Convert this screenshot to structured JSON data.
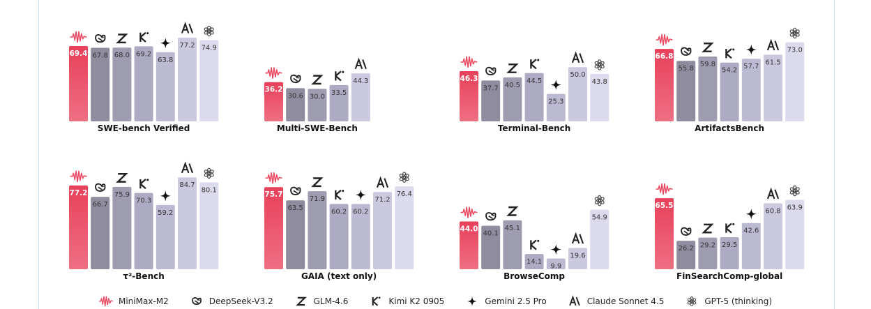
{
  "models": [
    {
      "name": "MiniMax-M2",
      "icon": "minimax-icon",
      "color": "#e8475f"
    },
    {
      "name": "DeepSeek-V3.2",
      "icon": "deepseek-icon",
      "color": "#8e8c9e"
    },
    {
      "name": "GLM-4.6",
      "icon": "glm-icon",
      "color": "#9e9cb0"
    },
    {
      "name": "Kimi K2 0905",
      "icon": "kimi-icon",
      "color": "#adabc3"
    },
    {
      "name": "Gemini 2.5 Pro",
      "icon": "gemini-icon",
      "color": "#bcbad2"
    },
    {
      "name": "Claude Sonnet 4.5",
      "icon": "claude-icon",
      "color": "#cbc9e0"
    },
    {
      "name": "GPT-5 (thinking)",
      "icon": "openai-icon",
      "color": "#dcdbed"
    }
  ],
  "chart_data": [
    {
      "type": "bar",
      "title": "SWE-bench Verified",
      "series": [
        {
          "model": "MiniMax-M2",
          "value": 69.4
        },
        {
          "model": "DeepSeek-V3.2",
          "value": 67.8
        },
        {
          "model": "GLM-4.6",
          "value": 68.0
        },
        {
          "model": "Kimi K2 0905",
          "value": 69.2
        },
        {
          "model": "Gemini 2.5 Pro",
          "value": 63.8
        },
        {
          "model": "Claude Sonnet 4.5",
          "value": 77.2
        },
        {
          "model": "GPT-5 (thinking)",
          "value": 74.9
        }
      ]
    },
    {
      "type": "bar",
      "title": "Multi-SWE-Bench",
      "series": [
        {
          "model": "MiniMax-M2",
          "value": 36.2
        },
        {
          "model": "DeepSeek-V3.2",
          "value": 30.6
        },
        {
          "model": "GLM-4.6",
          "value": 30.0
        },
        {
          "model": "Kimi K2 0905",
          "value": 33.5
        },
        {
          "model": "Claude Sonnet 4.5",
          "value": 44.3
        }
      ]
    },
    {
      "type": "bar",
      "title": "Terminal-Bench",
      "series": [
        {
          "model": "MiniMax-M2",
          "value": 46.3
        },
        {
          "model": "DeepSeek-V3.2",
          "value": 37.7
        },
        {
          "model": "GLM-4.6",
          "value": 40.5
        },
        {
          "model": "Kimi K2 0905",
          "value": 44.5
        },
        {
          "model": "Gemini 2.5 Pro",
          "value": 25.3
        },
        {
          "model": "Claude Sonnet 4.5",
          "value": 50.0
        },
        {
          "model": "GPT-5 (thinking)",
          "value": 43.8
        }
      ]
    },
    {
      "type": "bar",
      "title": "ArtifactsBench",
      "series": [
        {
          "model": "MiniMax-M2",
          "value": 66.8
        },
        {
          "model": "DeepSeek-V3.2",
          "value": 55.8
        },
        {
          "model": "GLM-4.6",
          "value": 59.8
        },
        {
          "model": "Kimi K2 0905",
          "value": 54.2
        },
        {
          "model": "Gemini 2.5 Pro",
          "value": 57.7
        },
        {
          "model": "Claude Sonnet 4.5",
          "value": 61.5
        },
        {
          "model": "GPT-5 (thinking)",
          "value": 73.0
        }
      ]
    },
    {
      "type": "bar",
      "title": "τ²-Bench",
      "series": [
        {
          "model": "MiniMax-M2",
          "value": 77.2
        },
        {
          "model": "DeepSeek-V3.2",
          "value": 66.7
        },
        {
          "model": "GLM-4.6",
          "value": 75.9
        },
        {
          "model": "Kimi K2 0905",
          "value": 70.3
        },
        {
          "model": "Gemini 2.5 Pro",
          "value": 59.2
        },
        {
          "model": "Claude Sonnet 4.5",
          "value": 84.7
        },
        {
          "model": "GPT-5 (thinking)",
          "value": 80.1
        }
      ]
    },
    {
      "type": "bar",
      "title": "GAIA (text only)",
      "series": [
        {
          "model": "MiniMax-M2",
          "value": 75.7
        },
        {
          "model": "DeepSeek-V3.2",
          "value": 63.5
        },
        {
          "model": "GLM-4.6",
          "value": 71.9
        },
        {
          "model": "Kimi K2 0905",
          "value": 60.2
        },
        {
          "model": "Gemini 2.5 Pro",
          "value": 60.2
        },
        {
          "model": "Claude Sonnet 4.5",
          "value": 71.2
        },
        {
          "model": "GPT-5 (thinking)",
          "value": 76.4
        }
      ]
    },
    {
      "type": "bar",
      "title": "BrowseComp",
      "series": [
        {
          "model": "MiniMax-M2",
          "value": 44.0
        },
        {
          "model": "DeepSeek-V3.2",
          "value": 40.1
        },
        {
          "model": "GLM-4.6",
          "value": 45.1
        },
        {
          "model": "Kimi K2 0905",
          "value": 14.1
        },
        {
          "model": "Gemini 2.5 Pro",
          "value": 9.9
        },
        {
          "model": "Claude Sonnet 4.5",
          "value": 19.6
        },
        {
          "model": "GPT-5 (thinking)",
          "value": 54.9
        }
      ]
    },
    {
      "type": "bar",
      "title": "FinSearchComp-global",
      "series": [
        {
          "model": "MiniMax-M2",
          "value": 65.5
        },
        {
          "model": "DeepSeek-V3.2",
          "value": 26.2
        },
        {
          "model": "GLM-4.6",
          "value": 29.2
        },
        {
          "model": "Kimi K2 0905",
          "value": 29.5
        },
        {
          "model": "Gemini 2.5 Pro",
          "value": 42.6
        },
        {
          "model": "Claude Sonnet 4.5",
          "value": 60.8
        },
        {
          "model": "GPT-5 (thinking)",
          "value": 63.9
        }
      ]
    }
  ]
}
